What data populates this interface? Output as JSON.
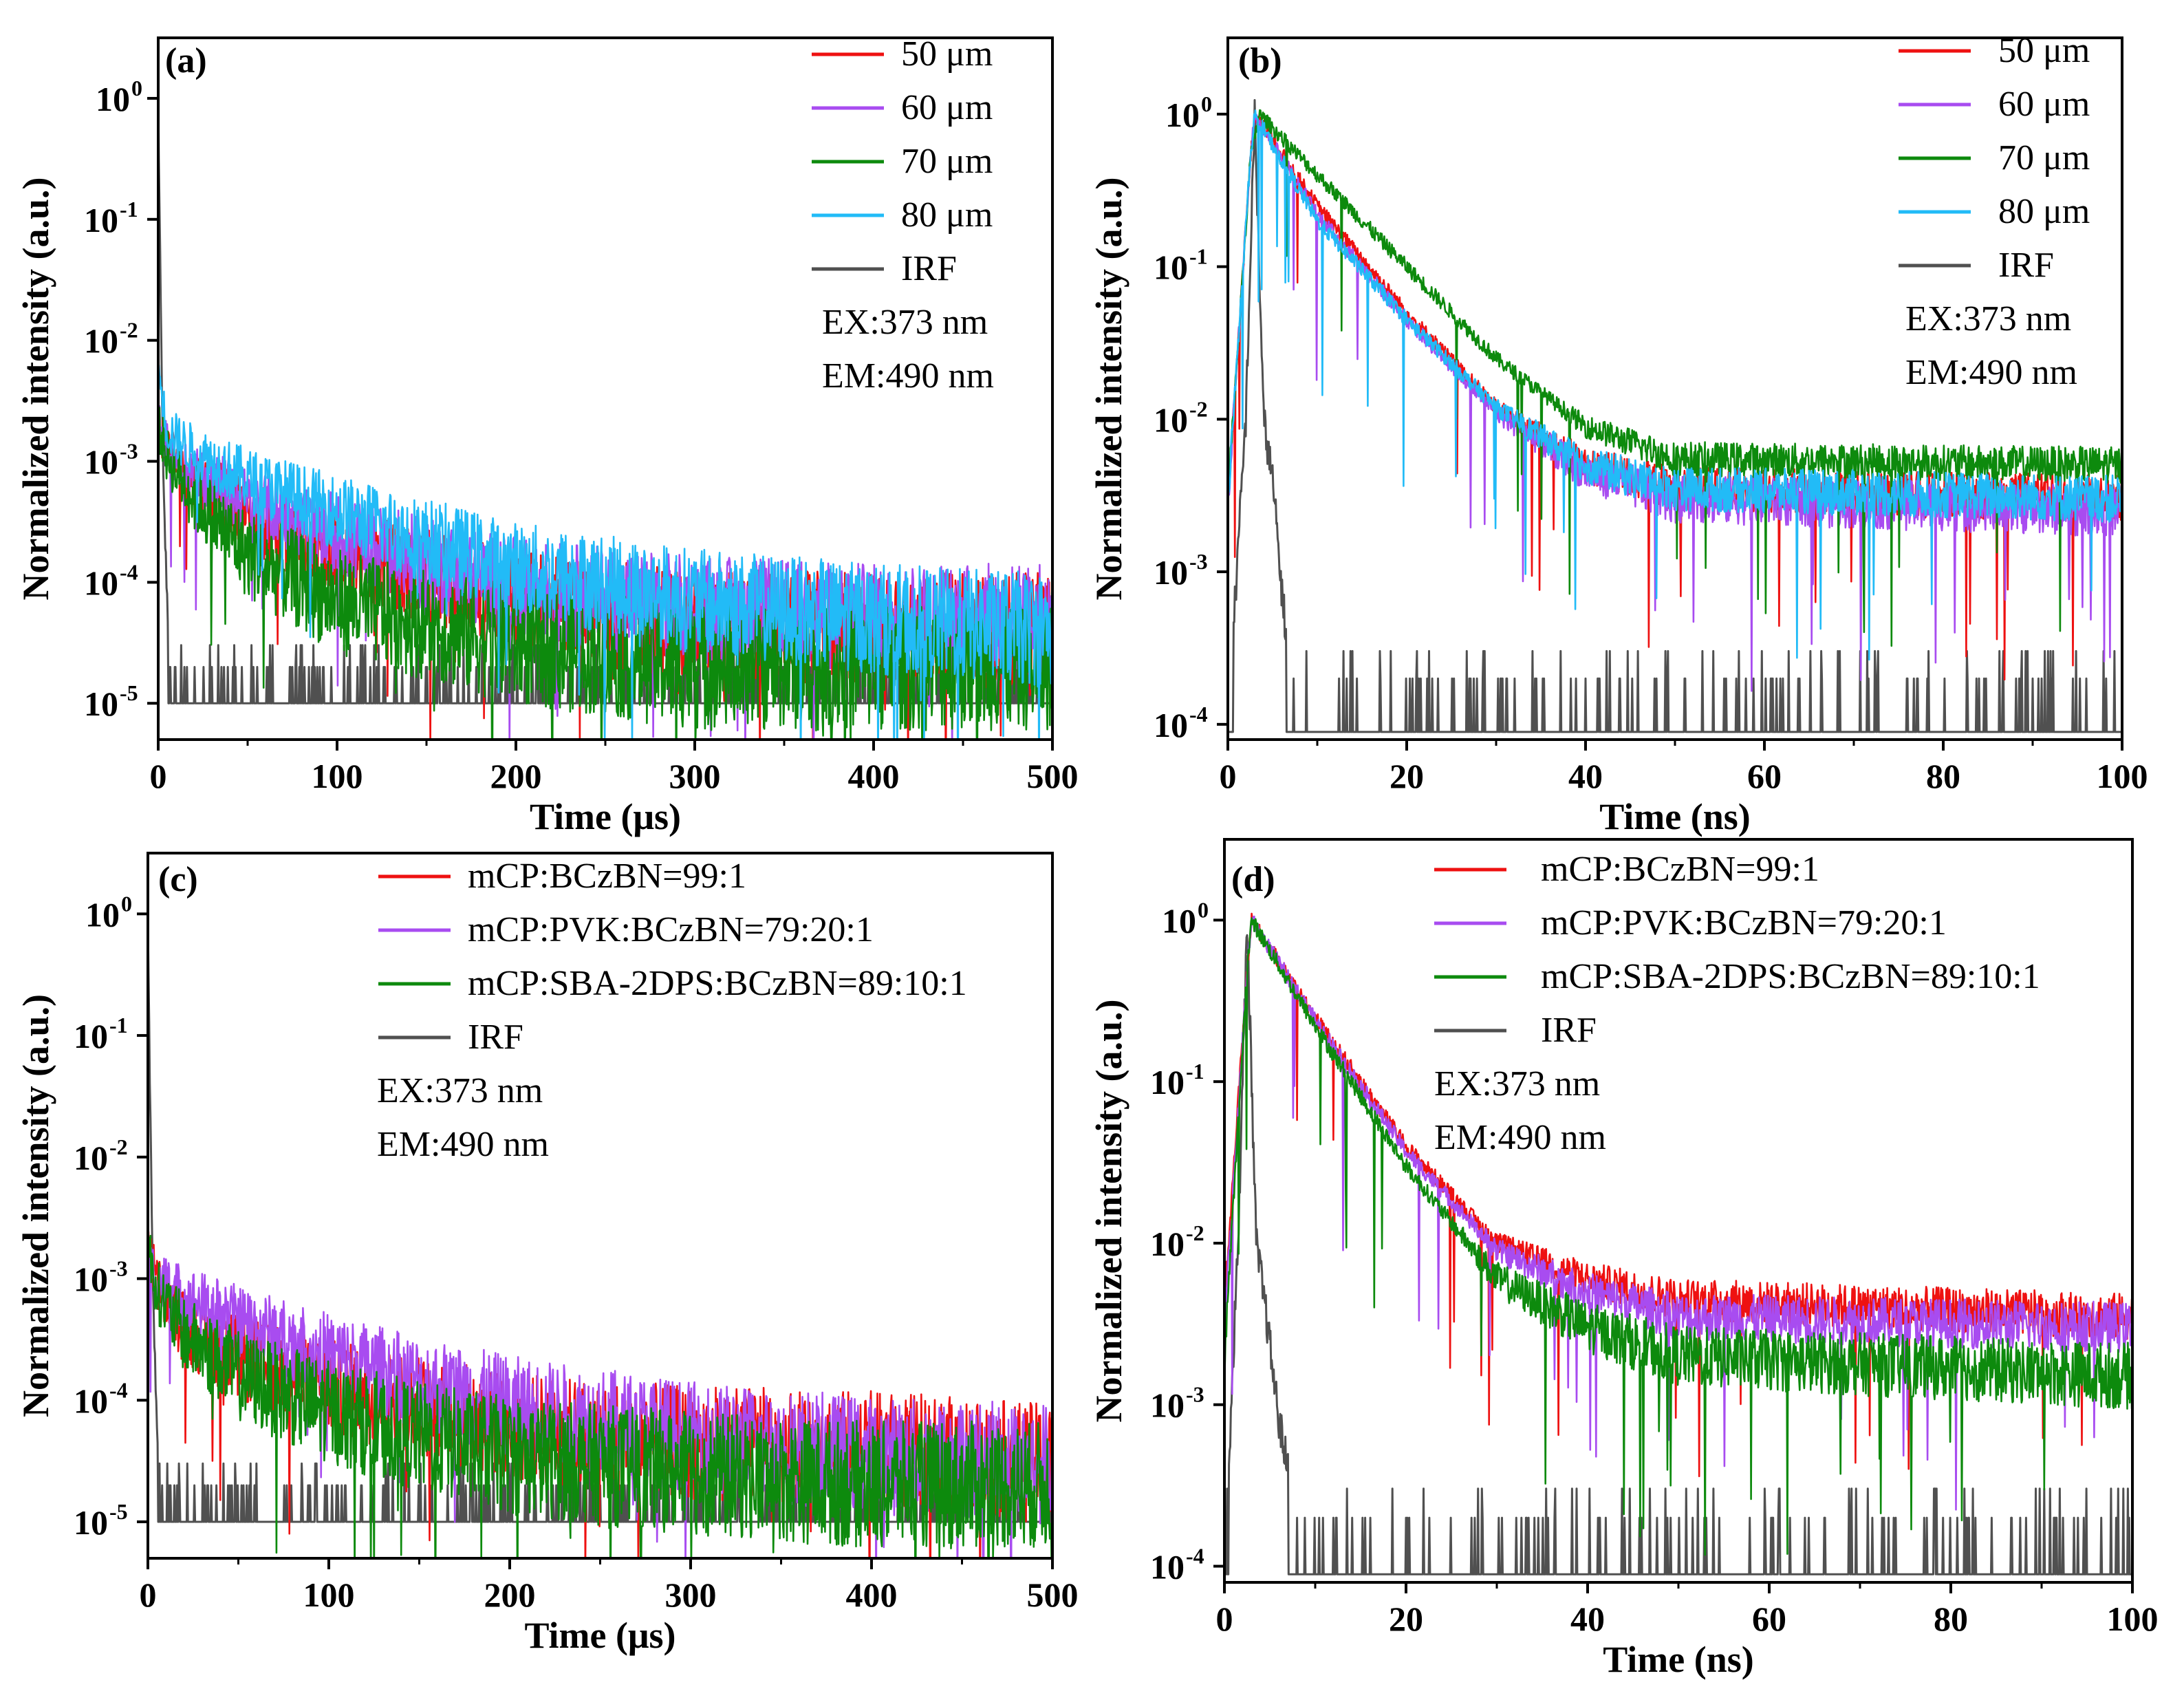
{
  "figure": {
    "description_free": true
  },
  "colors": {
    "50um": "#ee1111",
    "60um": "#a84cf0",
    "70um": "#0d8a0d",
    "80um": "#22bbf7",
    "IRF": "#505050",
    "mcp": "#ee1111",
    "pvk": "#a84cf0",
    "sba": "#0d8a0d"
  },
  "chart_data": [
    {
      "panel": "(a)",
      "type": "line",
      "xlabel": "Time (μs)",
      "ylabel": "Normalized intensity (a.u.)",
      "yscale": "log",
      "xlim": [
        0,
        500
      ],
      "ylim_log10": [
        -5.3,
        0.5
      ],
      "x_ticks": [
        "0",
        "100",
        "200",
        "300",
        "400",
        "500"
      ],
      "y_ticks": [
        {
          "base": "10",
          "exp": "0"
        },
        {
          "base": "10",
          "exp": "-1"
        },
        {
          "base": "10",
          "exp": "-2"
        },
        {
          "base": "10",
          "exp": "-3"
        },
        {
          "base": "10",
          "exp": "-4"
        },
        {
          "base": "10",
          "exp": "-5"
        }
      ],
      "legend": [
        "50 μm",
        "60 μm",
        "70 μm",
        "80 μm",
        "IRF"
      ],
      "annotations": [
        "EX:373 nm",
        "EM:490 nm"
      ],
      "series": [
        {
          "name": "50 μm",
          "color_key": "50um",
          "t": [
            0,
            5,
            20,
            50,
            100,
            150,
            200,
            300,
            400,
            500
          ],
          "y": [
            0.002,
            0.0013,
            0.0007,
            0.00035,
            0.00018,
            0.00011,
            7e-05,
            4.5e-05,
            4e-05,
            4e-05
          ]
        },
        {
          "name": "60 μm",
          "color_key": "60um",
          "t": [
            0,
            5,
            20,
            50,
            100,
            150,
            200,
            300,
            400,
            500
          ],
          "y": [
            0.002,
            0.0013,
            0.0008,
            0.00045,
            0.00025,
            0.00014,
            9e-05,
            6e-05,
            5e-05,
            5e-05
          ]
        },
        {
          "name": "70 μm",
          "color_key": "70um",
          "t": [
            0,
            5,
            20,
            50,
            100,
            150,
            200,
            250,
            300,
            400,
            500
          ],
          "y": [
            0.002,
            0.0011,
            0.0005,
            0.00017,
            7e-05,
            4.5e-05,
            3e-05,
            2.5e-05,
            2e-05,
            2e-05,
            2e-05
          ]
        },
        {
          "name": "80 μm",
          "color_key": "80um",
          "t": [
            0,
            5,
            20,
            50,
            100,
            150,
            200,
            300,
            400,
            500
          ],
          "y": [
            0.006,
            0.0018,
            0.0012,
            0.0007,
            0.00038,
            0.00022,
            0.00013,
            7e-05,
            5e-05,
            4e-05
          ]
        },
        {
          "name": "IRF",
          "color_key": "IRF",
          "t": [
            0,
            1,
            3,
            6,
            10,
            500
          ],
          "y": [
            1.0,
            0.05,
            0.0005,
            3e-05,
            1e-05,
            1e-05
          ]
        }
      ]
    },
    {
      "panel": "(b)",
      "type": "line",
      "xlabel": "Time (ns)",
      "ylabel": "Normalized intensity (a.u.)",
      "yscale": "log",
      "xlim": [
        0,
        100
      ],
      "ylim_log10": [
        -4.1,
        0.5
      ],
      "x_ticks": [
        "0",
        "20",
        "40",
        "60",
        "80",
        "100"
      ],
      "y_ticks": [
        {
          "base": "10",
          "exp": "0"
        },
        {
          "base": "10",
          "exp": "-1"
        },
        {
          "base": "10",
          "exp": "-2"
        },
        {
          "base": "10",
          "exp": "-3"
        },
        {
          "base": "10",
          "exp": "-4"
        }
      ],
      "legend": [
        "50 μm",
        "60 μm",
        "70 μm",
        "80 μm",
        "IRF"
      ],
      "annotations": [
        "EX:373 nm",
        "EM:490 nm"
      ],
      "series": [
        {
          "name": "50 μm",
          "color_key": "50um",
          "t": [
            0,
            2.5,
            3,
            10,
            20,
            30,
            40,
            50,
            100
          ],
          "y": [
            0.003,
            0.5,
            1.0,
            0.25,
            0.05,
            0.012,
            0.005,
            0.0035,
            0.003
          ]
        },
        {
          "name": "60 μm",
          "color_key": "60um",
          "t": [
            0,
            2.5,
            3,
            10,
            20,
            30,
            40,
            50,
            100
          ],
          "y": [
            0.003,
            0.5,
            1.0,
            0.22,
            0.045,
            0.011,
            0.0045,
            0.003,
            0.0025
          ]
        },
        {
          "name": "70 μm",
          "color_key": "70um",
          "t": [
            0,
            2.5,
            3.5,
            10,
            20,
            30,
            40,
            50,
            100
          ],
          "y": [
            0.003,
            0.5,
            1.0,
            0.4,
            0.1,
            0.025,
            0.009,
            0.0055,
            0.005
          ]
        },
        {
          "name": "80 μm",
          "color_key": "80um",
          "t": [
            0,
            2.5,
            3,
            10,
            20,
            30,
            40,
            50,
            100
          ],
          "y": [
            0.003,
            0.5,
            1.0,
            0.2,
            0.045,
            0.012,
            0.005,
            0.0035,
            0.003
          ]
        },
        {
          "name": "IRF",
          "color_key": "IRF",
          "t": [
            0,
            2,
            3,
            4,
            5,
            6,
            7,
            10,
            100
          ],
          "y": [
            0.0001,
            0.01,
            1.0,
            0.01,
            0.004,
            0.0008,
            0.0002,
            0.0001,
            0.0001
          ]
        }
      ]
    },
    {
      "panel": "(c)",
      "type": "line",
      "xlabel": "Time (μs)",
      "ylabel": "Normalized intensity (a.u.)",
      "yscale": "log",
      "xlim": [
        0,
        500
      ],
      "ylim_log10": [
        -5.3,
        0.5
      ],
      "x_ticks": [
        "0",
        "100",
        "200",
        "300",
        "400",
        "500"
      ],
      "y_ticks": [
        {
          "base": "10",
          "exp": "0"
        },
        {
          "base": "10",
          "exp": "-1"
        },
        {
          "base": "10",
          "exp": "-2"
        },
        {
          "base": "10",
          "exp": "-3"
        },
        {
          "base": "10",
          "exp": "-4"
        },
        {
          "base": "10",
          "exp": "-5"
        }
      ],
      "legend": [
        "mCP:BCzBN=99:1",
        "mCP:PVK:BCzBN=79:20:1",
        "mCP:SBA-2DPS:BCzBN=89:10:1",
        "IRF"
      ],
      "annotations": [
        "EX:373 nm",
        "EM:490 nm"
      ],
      "series": [
        {
          "name": "mCP:BCzBN=99:1",
          "color_key": "mcp",
          "t": [
            0,
            5,
            20,
            50,
            100,
            150,
            200,
            300,
            400,
            500
          ],
          "y": [
            0.002,
            0.0009,
            0.0004,
            0.00022,
            0.00013,
            9e-05,
            6e-05,
            4.5e-05,
            4e-05,
            3e-05
          ]
        },
        {
          "name": "mCP:PVK:BCzBN=79:20:1",
          "color_key": "pvk",
          "t": [
            0,
            5,
            20,
            50,
            100,
            150,
            200,
            300,
            400,
            500
          ],
          "y": [
            0.0015,
            0.001,
            0.0007,
            0.00045,
            0.00024,
            0.00014,
            9e-05,
            5e-05,
            3.5e-05,
            3e-05
          ]
        },
        {
          "name": "mCP:SBA-2DPS:BCzBN=89:10:1",
          "color_key": "sba",
          "t": [
            0,
            5,
            20,
            50,
            100,
            150,
            200,
            300,
            400,
            500
          ],
          "y": [
            0.002,
            0.0008,
            0.00035,
            0.00016,
            8e-05,
            5e-05,
            3.5e-05,
            2.5e-05,
            2e-05,
            2e-05
          ]
        },
        {
          "name": "IRF",
          "color_key": "IRF",
          "t": [
            0,
            1,
            3,
            6,
            10,
            500
          ],
          "y": [
            1.0,
            0.05,
            0.0005,
            3e-05,
            1e-05,
            1e-05
          ]
        }
      ]
    },
    {
      "panel": "(d)",
      "type": "line",
      "xlabel": "Time (ns)",
      "ylabel": "Normalized intensity (a.u.)",
      "yscale": "log",
      "xlim": [
        0,
        100
      ],
      "ylim_log10": [
        -4.1,
        0.5
      ],
      "x_ticks": [
        "0",
        "20",
        "40",
        "60",
        "80",
        "100"
      ],
      "y_ticks": [
        {
          "base": "10",
          "exp": "0"
        },
        {
          "base": "10",
          "exp": "-1"
        },
        {
          "base": "10",
          "exp": "-2"
        },
        {
          "base": "10",
          "exp": "-3"
        },
        {
          "base": "10",
          "exp": "-4"
        }
      ],
      "legend": [
        "mCP:BCzBN=99:1",
        "mCP:PVK:BCzBN=79:20:1",
        "mCP:SBA-2DPS:BCzBN=89:10:1",
        "IRF"
      ],
      "annotations": [
        "EX:373 nm",
        "EM:490 nm"
      ],
      "series": [
        {
          "name": "mCP:BCzBN=99:1",
          "color_key": "mcp",
          "t": [
            0,
            2.5,
            3,
            10,
            20,
            30,
            40,
            50,
            100
          ],
          "y": [
            0.004,
            0.5,
            1.0,
            0.25,
            0.04,
            0.01,
            0.006,
            0.0045,
            0.0035
          ]
        },
        {
          "name": "mCP:PVK:BCzBN=79:20:1",
          "color_key": "pvk",
          "t": [
            0,
            2.5,
            3,
            10,
            20,
            30,
            40,
            50,
            100
          ],
          "y": [
            0.003,
            0.5,
            1.0,
            0.24,
            0.037,
            0.009,
            0.005,
            0.0035,
            0.003
          ]
        },
        {
          "name": "mCP:SBA-2DPS:BCzBN=89:10:1",
          "color_key": "sba",
          "t": [
            0,
            2.5,
            3,
            10,
            20,
            30,
            40,
            50,
            100
          ],
          "y": [
            0.002,
            0.5,
            1.0,
            0.22,
            0.03,
            0.006,
            0.003,
            0.002,
            0.0015
          ]
        },
        {
          "name": "IRF",
          "color_key": "IRF",
          "t": [
            0,
            1.5,
            2.5,
            3.5,
            4.5,
            6,
            8,
            10,
            100
          ],
          "y": [
            0.0001,
            0.01,
            1.0,
            0.01,
            0.004,
            0.0008,
            0.0002,
            0.0001,
            0.0001
          ]
        }
      ]
    }
  ]
}
